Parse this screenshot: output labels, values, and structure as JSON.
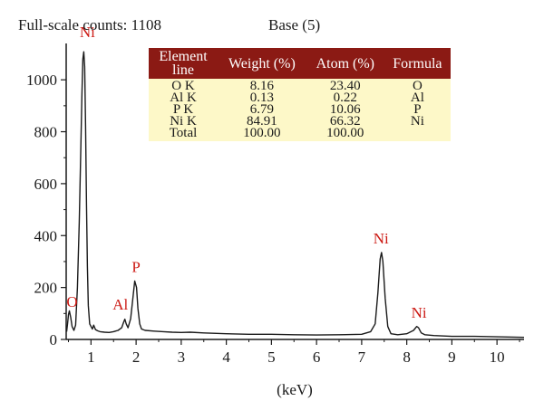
{
  "header": {
    "full_scale": "Full-scale counts: 1108",
    "base": "Base (5)"
  },
  "table": {
    "headers": [
      "Element line",
      "Weight (%)",
      "Atom (%)",
      "Formula"
    ],
    "rows": [
      [
        "O K",
        "8.16",
        "23.40",
        "O"
      ],
      [
        "Al K",
        "0.13",
        "0.22",
        "Al"
      ],
      [
        "P K",
        "6.79",
        "10.06",
        "P"
      ],
      [
        "Ni K",
        "84.91",
        "66.32",
        "Ni"
      ],
      [
        "Total",
        "100.00",
        "100.00",
        ""
      ]
    ]
  },
  "chart_data": {
    "type": "line",
    "xlabel": "(keV)",
    "ylabel": "",
    "xlim": [
      0.45,
      10.6
    ],
    "ylim": [
      0,
      1140
    ],
    "xticks": [
      1,
      2,
      3,
      4,
      5,
      6,
      7,
      8,
      9,
      10
    ],
    "yticks": [
      0,
      200,
      400,
      600,
      800,
      1000
    ],
    "grid": false,
    "line_color": "#1a1a1a",
    "annotation_color": "#cc1a14",
    "series": [
      {
        "x": [
          0.46,
          0.48,
          0.5,
          0.52,
          0.55,
          0.58,
          0.62,
          0.66,
          0.7,
          0.74,
          0.78,
          0.8,
          0.82,
          0.84,
          0.86,
          0.88,
          0.9,
          0.92,
          0.94,
          0.97,
          1.0,
          1.03,
          1.06,
          1.1,
          1.15,
          1.2,
          1.3,
          1.4,
          1.5,
          1.6,
          1.68,
          1.72,
          1.75,
          1.78,
          1.82,
          1.88,
          1.93,
          1.97,
          2.01,
          2.04,
          2.08,
          2.12,
          2.2,
          2.4,
          2.6,
          2.8,
          3.0,
          3.2,
          3.5,
          4.0,
          4.5,
          5.0,
          5.5,
          6.0,
          6.5,
          7.0,
          7.2,
          7.3,
          7.36,
          7.41,
          7.44,
          7.47,
          7.52,
          7.58,
          7.65,
          7.8,
          8.0,
          8.15,
          8.22,
          8.26,
          8.32,
          8.4,
          8.6,
          9.0,
          9.5,
          10.0,
          10.6
        ],
        "y": [
          30,
          60,
          95,
          110,
          85,
          50,
          35,
          55,
          200,
          450,
          780,
          950,
          1080,
          1108,
          1050,
          820,
          520,
          280,
          130,
          60,
          50,
          40,
          55,
          38,
          33,
          30,
          28,
          27,
          30,
          35,
          45,
          65,
          78,
          60,
          45,
          80,
          160,
          225,
          200,
          120,
          60,
          40,
          35,
          32,
          30,
          28,
          27,
          28,
          25,
          22,
          20,
          20,
          18,
          17,
          18,
          20,
          30,
          60,
          180,
          310,
          335,
          300,
          160,
          50,
          22,
          18,
          22,
          35,
          50,
          45,
          25,
          18,
          15,
          12,
          12,
          10,
          8
        ]
      }
    ],
    "annotations": [
      {
        "label": "Ni",
        "x": 0.92,
        "y": 1165
      },
      {
        "label": "O",
        "x": 0.58,
        "y": 125
      },
      {
        "label": "Al",
        "x": 1.65,
        "y": 115
      },
      {
        "label": "P",
        "x": 2.0,
        "y": 260
      },
      {
        "label": "Ni",
        "x": 7.43,
        "y": 370
      },
      {
        "label": "Ni",
        "x": 8.27,
        "y": 83
      }
    ]
  }
}
